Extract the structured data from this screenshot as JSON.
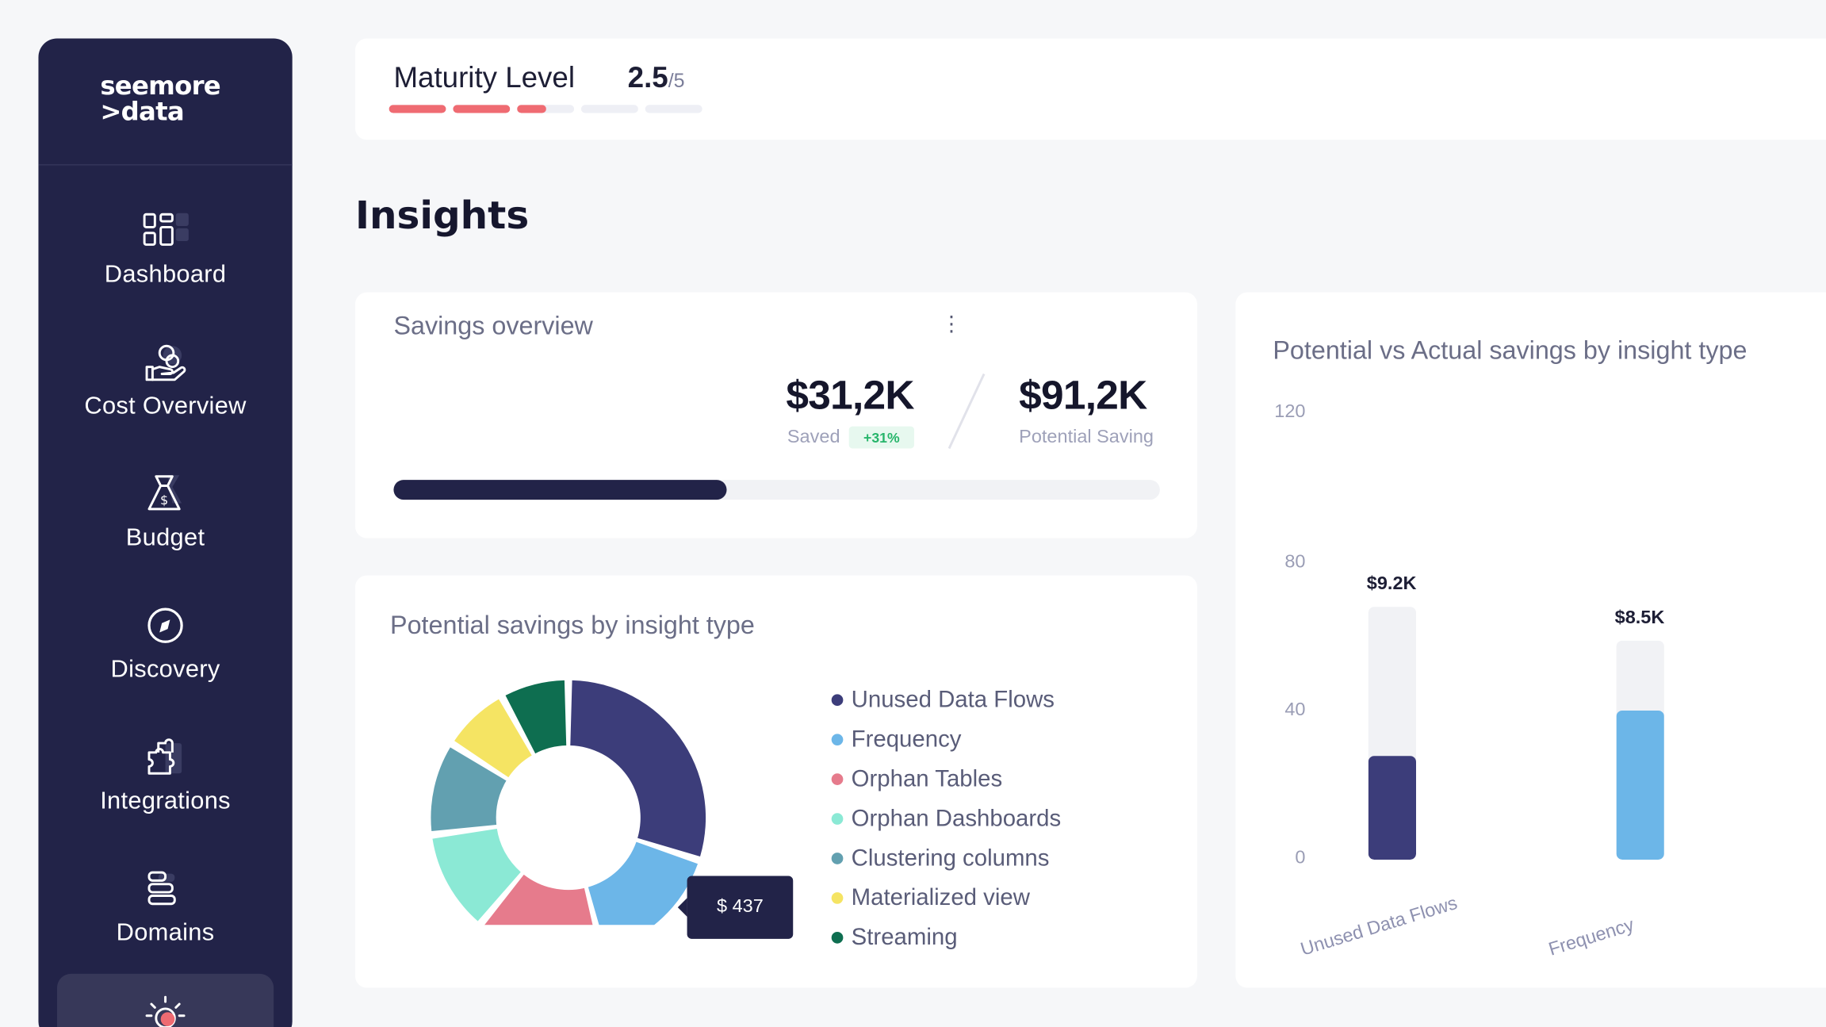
{
  "sidebar": {
    "logo_line1": "seemore",
    "logo_line2": ">data",
    "items": [
      {
        "label": "Dashboard",
        "icon": "dashboard-icon"
      },
      {
        "label": "Cost Overview",
        "icon": "coins-hand-icon"
      },
      {
        "label": "Budget",
        "icon": "money-bag-icon"
      },
      {
        "label": "Discovery",
        "icon": "compass-icon"
      },
      {
        "label": "Integrations",
        "icon": "puzzle-icon"
      },
      {
        "label": "Domains",
        "icon": "layers-icon"
      },
      {
        "label": "",
        "icon": "lightbulb-icon",
        "active": true
      }
    ]
  },
  "maturity": {
    "label": "Maturity Level",
    "value": "2.5",
    "max": "/5",
    "level": 2.5,
    "segments": 5,
    "color": "#ef6b72"
  },
  "page_title": "Insights",
  "savings": {
    "title": "Savings overview",
    "saved_value": "$31,2K",
    "saved_label": "Saved",
    "change": "+31%",
    "potential_value": "$91,2K",
    "potential_label": "Potential Saving",
    "progress_fraction": 0.435
  },
  "potential_by_type": {
    "title": "Potential savings by insight type",
    "tooltip": "$ 437",
    "legend": [
      {
        "label": "Unused Data Flows",
        "color": "#3c3d7a"
      },
      {
        "label": "Frequency",
        "color": "#6cb6e8"
      },
      {
        "label": "Orphan Tables",
        "color": "#e67b8c"
      },
      {
        "label": "Orphan Dashboards",
        "color": "#8be9d5"
      },
      {
        "label": "Clustering columns",
        "color": "#62a0b0"
      },
      {
        "label": "Materialized view",
        "color": "#f5e463"
      },
      {
        "label": "Streaming",
        "color": "#0e6e50"
      }
    ]
  },
  "potential_vs_actual": {
    "title": "Potential vs Actual savings by insight type"
  },
  "chart_data": [
    {
      "type": "pie",
      "title": "Potential savings by insight type",
      "categories": [
        "Unused Data Flows",
        "Frequency",
        "Orphan Tables",
        "Orphan Dashboards",
        "Clustering columns",
        "Materialized view",
        "Streaming"
      ],
      "values": [
        30,
        16,
        15,
        12,
        11,
        8,
        8
      ],
      "colors": [
        "#3c3d7a",
        "#6cb6e8",
        "#e67b8c",
        "#8be9d5",
        "#62a0b0",
        "#f5e463",
        "#0e6e50"
      ]
    },
    {
      "type": "bar",
      "title": "Potential vs Actual savings by insight type",
      "categories": [
        "Unused Data Flows",
        "Frequency"
      ],
      "yticks": [
        "120",
        "80",
        "40",
        "0"
      ],
      "ylim": [
        0,
        120
      ],
      "series": [
        {
          "name": "Potential",
          "values": [
            68,
            59
          ],
          "color": "#f1f2f5"
        },
        {
          "name": "Actual",
          "values": [
            28,
            40
          ],
          "colors": [
            "#3c3d7a",
            "#6cb6e8"
          ]
        }
      ],
      "value_labels": [
        "$9.2K",
        "$8.5K"
      ]
    }
  ]
}
